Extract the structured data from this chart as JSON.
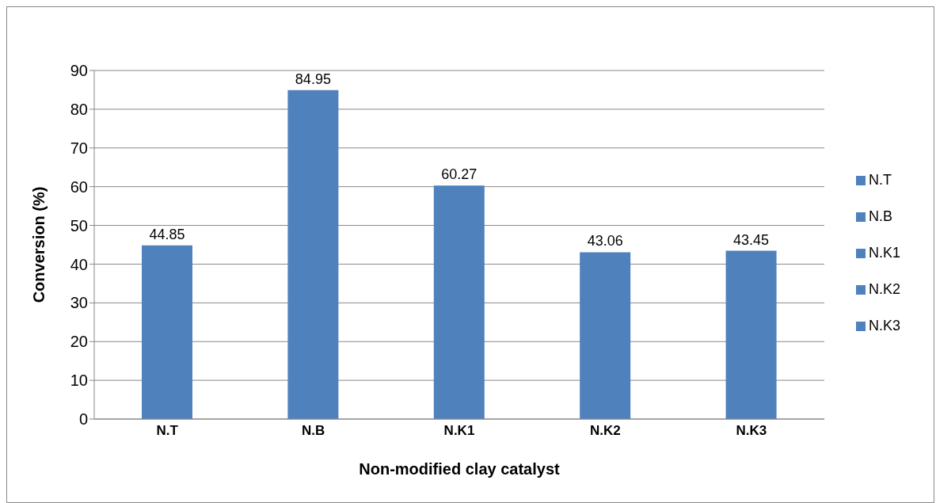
{
  "chart_data": {
    "type": "bar",
    "xlabel": "Non-modified clay catalyst",
    "ylabel": "Conversion (%)",
    "categories": [
      "N.T",
      "N.B",
      "N.K1",
      "N.K2",
      "N.K3"
    ],
    "series": [
      {
        "name": "N.T",
        "color": "#4f81bd",
        "values": [
          44.85,
          null,
          null,
          null,
          null
        ]
      },
      {
        "name": "N.B",
        "color": "#4f81bd",
        "values": [
          null,
          84.95,
          null,
          null,
          null
        ]
      },
      {
        "name": "N.K1",
        "color": "#4f81bd",
        "values": [
          null,
          null,
          60.27,
          null,
          null
        ]
      },
      {
        "name": "N.K2",
        "color": "#4f81bd",
        "values": [
          null,
          null,
          null,
          43.06,
          null
        ]
      },
      {
        "name": "N.K3",
        "color": "#4f81bd",
        "values": [
          null,
          null,
          null,
          null,
          43.45
        ]
      }
    ],
    "stacked": true,
    "ylim": [
      0,
      90
    ],
    "yticks": [
      0,
      10,
      20,
      30,
      40,
      50,
      60,
      70,
      80,
      90
    ],
    "grid": "y",
    "legend": "right",
    "data_labels": true
  }
}
